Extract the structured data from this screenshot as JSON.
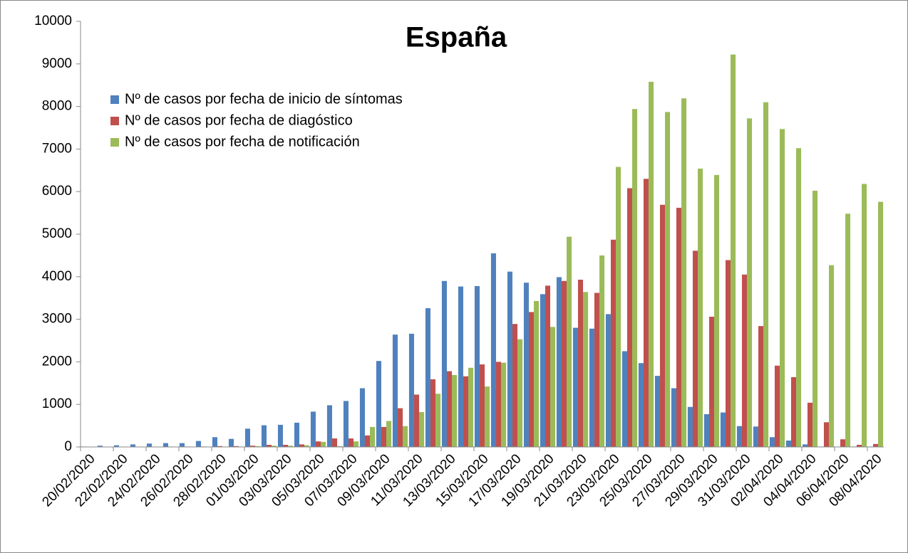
{
  "chart_data": {
    "type": "bar",
    "title": "España",
    "categories": [
      "20/02/2020",
      null,
      "22/02/2020",
      null,
      "24/02/2020",
      null,
      "26/02/2020",
      null,
      "28/02/2020",
      null,
      "01/03/2020",
      null,
      "03/03/2020",
      null,
      "05/03/2020",
      null,
      "07/03/2020",
      null,
      "09/03/2020",
      null,
      "11/03/2020",
      null,
      "13/03/2020",
      null,
      "15/03/2020",
      null,
      "17/03/2020",
      null,
      "19/03/2020",
      null,
      "21/03/2020",
      null,
      "23/03/2020",
      null,
      "25/03/2020",
      null,
      "27/03/2020",
      null,
      "29/03/2020",
      null,
      "31/03/2020",
      null,
      "02/04/2020",
      null,
      "04/04/2020",
      null,
      "06/04/2020",
      null,
      "08/04/2020"
    ],
    "series": [
      {
        "name": "Nº de casos por fecha de inicio de síntomas",
        "color": "#4f81bd",
        "values": [
          10,
          30,
          40,
          60,
          80,
          90,
          90,
          140,
          230,
          190,
          430,
          510,
          520,
          570,
          830,
          980,
          1080,
          1380,
          2020,
          2640,
          2660,
          3260,
          3900,
          3770,
          3780,
          4550,
          4120,
          3860,
          3590,
          3990,
          2800,
          2780,
          3120,
          2250,
          1970,
          1670,
          1380,
          940,
          770,
          810,
          490,
          480,
          230,
          150,
          60,
          10,
          0,
          10,
          10
        ]
      },
      {
        "name": "Nº de casos por fecha de diagóstico",
        "color": "#c0504d",
        "values": [
          0,
          0,
          0,
          0,
          0,
          10,
          10,
          10,
          20,
          20,
          30,
          50,
          50,
          60,
          130,
          200,
          200,
          270,
          470,
          910,
          1230,
          1590,
          1780,
          1660,
          1940,
          2000,
          2890,
          3170,
          3790,
          3900,
          3930,
          3620,
          4870,
          6080,
          6300,
          5690,
          5620,
          4610,
          3060,
          4390,
          4050,
          2840,
          1910,
          1640,
          1040,
          580,
          180,
          50,
          70
        ]
      },
      {
        "name": "Nº de casos por fecha de notificación",
        "color": "#9bbb59",
        "values": [
          0,
          0,
          0,
          0,
          0,
          0,
          0,
          0,
          0,
          0,
          20,
          30,
          30,
          40,
          120,
          20,
          130,
          470,
          610,
          490,
          820,
          1250,
          1690,
          1860,
          1420,
          1980,
          2530,
          3430,
          2820,
          4940,
          3640,
          4500,
          6580,
          7940,
          8580,
          7870,
          8190,
          6540,
          6390,
          9220,
          7720,
          8100,
          7470,
          7020,
          6020,
          4270,
          5480,
          6180,
          5760
        ]
      }
    ],
    "ylim": [
      0,
      10000
    ],
    "yticks": [
      0,
      1000,
      2000,
      3000,
      4000,
      5000,
      6000,
      7000,
      8000,
      9000,
      10000
    ],
    "grid": false,
    "legend": "upper left"
  }
}
